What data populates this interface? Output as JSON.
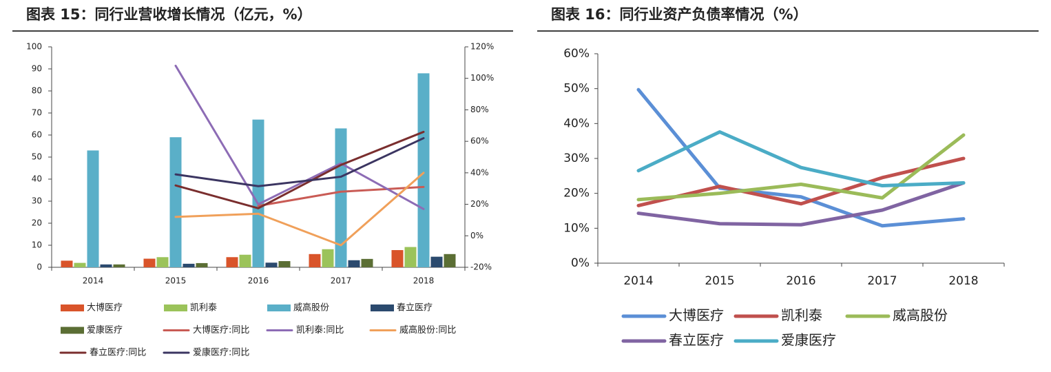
{
  "chart_data": [
    {
      "type": "bar",
      "title": "图表 15：同行业营收增长情况（亿元，%）",
      "categories": [
        "2014",
        "2015",
        "2016",
        "2017",
        "2018"
      ],
      "ylim": [
        0,
        100
      ],
      "yticks": [
        0,
        10,
        20,
        30,
        40,
        50,
        60,
        70,
        80,
        90,
        100
      ],
      "y2lim": [
        -20,
        120
      ],
      "y2ticks": [
        {
          "value": -20,
          "label": "-20%"
        },
        {
          "value": 0,
          "label": "0%"
        },
        {
          "value": 20,
          "label": "20%"
        },
        {
          "value": 40,
          "label": "40%"
        },
        {
          "value": 60,
          "label": "60%"
        },
        {
          "value": 80,
          "label": "80%"
        },
        {
          "value": 100,
          "label": "100%"
        },
        {
          "value": 120,
          "label": "120%"
        }
      ],
      "grid": false,
      "series": [
        {
          "name": "大博医疗",
          "color": "#d9542a",
          "values": [
            3.0,
            3.9,
            4.6,
            6.0,
            7.8
          ]
        },
        {
          "name": "凯利泰",
          "color": "#9bc35a",
          "values": [
            2.0,
            4.6,
            5.7,
            8.2,
            9.2
          ]
        },
        {
          "name": "威高股份",
          "color": "#5aafc8",
          "values": [
            53,
            59,
            67,
            63,
            88
          ]
        },
        {
          "name": "春立医疗",
          "color": "#2b4a6e",
          "values": [
            1.3,
            1.6,
            2.1,
            3.2,
            4.8
          ]
        },
        {
          "name": "爱康医疗",
          "color": "#5b6e34",
          "values": [
            1.3,
            1.9,
            2.8,
            3.8,
            6.0
          ]
        },
        {
          "name": "大博医疗:同比",
          "color": "#c95b55",
          "type": "line",
          "axis": "y2",
          "values": [
            null,
            null,
            19,
            28,
            31
          ]
        },
        {
          "name": "凯利泰:同比",
          "color": "#8d6cb5",
          "type": "line",
          "axis": "y2",
          "values": [
            null,
            108,
            20,
            46,
            17
          ]
        },
        {
          "name": "威高股份:同比",
          "color": "#f0a05a",
          "type": "line",
          "axis": "y2",
          "values": [
            null,
            12,
            14,
            -6,
            40
          ]
        },
        {
          "name": "春立医疗:同比",
          "color": "#7a2e2e",
          "type": "line",
          "axis": "y2",
          "values": [
            null,
            32,
            17.5,
            45,
            66
          ]
        },
        {
          "name": "爱康医疗:同比",
          "color": "#3b3561",
          "type": "line",
          "axis": "y2",
          "values": [
            null,
            39,
            31.5,
            37.5,
            62
          ]
        }
      ]
    },
    {
      "type": "line",
      "title": "图表 16：同行业资产负债率情况（%）",
      "categories": [
        "2014",
        "2015",
        "2016",
        "2017",
        "2018"
      ],
      "ylim": [
        0,
        60
      ],
      "yticks": [
        {
          "value": 0,
          "label": "0%"
        },
        {
          "value": 10,
          "label": "10%"
        },
        {
          "value": 20,
          "label": "20%"
        },
        {
          "value": 30,
          "label": "30%"
        },
        {
          "value": 40,
          "label": "40%"
        },
        {
          "value": 50,
          "label": "50%"
        },
        {
          "value": 60,
          "label": "60%"
        }
      ],
      "grid": false,
      "series": [
        {
          "name": "大博医疗",
          "color": "#5b8fd6",
          "values": [
            49.7,
            21.5,
            19,
            10.7,
            12.7
          ]
        },
        {
          "name": "凯利泰",
          "color": "#c0504d",
          "values": [
            16.5,
            22,
            17,
            24.5,
            30
          ]
        },
        {
          "name": "威高股份",
          "color": "#9bbb59",
          "values": [
            18.2,
            20,
            22.6,
            18.7,
            36.7
          ]
        },
        {
          "name": "春立医疗",
          "color": "#8064a2",
          "values": [
            14.3,
            11.3,
            11,
            15.2,
            23
          ]
        },
        {
          "name": "爱康医疗",
          "color": "#4bacc6",
          "values": [
            26.5,
            37.6,
            27.4,
            22.2,
            23
          ]
        }
      ]
    }
  ]
}
